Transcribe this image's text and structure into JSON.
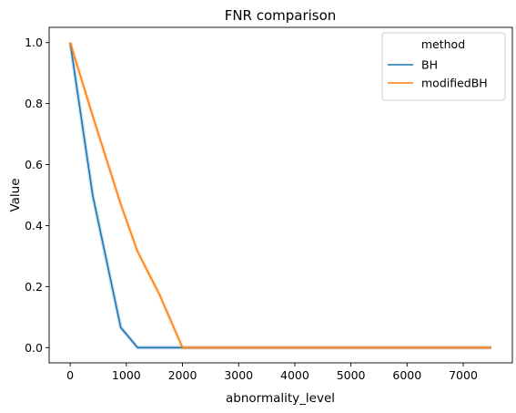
{
  "chart_data": {
    "type": "line",
    "title": "FNR comparison",
    "xlabel": "abnormality_level",
    "ylabel": "Value",
    "xlim": [
      -375,
      7875
    ],
    "ylim": [
      -0.05,
      1.05
    ],
    "x_ticks": [
      0,
      1000,
      2000,
      3000,
      4000,
      5000,
      6000,
      7000
    ],
    "x_tick_labels": [
      "0",
      "1000",
      "2000",
      "3000",
      "4000",
      "5000",
      "6000",
      "7000"
    ],
    "y_ticks": [
      0.0,
      0.2,
      0.4,
      0.6,
      0.8,
      1.0
    ],
    "y_tick_labels": [
      "0.0",
      "0.2",
      "0.4",
      "0.6",
      "0.8",
      "1.0"
    ],
    "grid": false,
    "legend": {
      "title": "method",
      "placement": "upper right"
    },
    "series": [
      {
        "name": "BH",
        "color": "#1f77b4",
        "x": [
          0,
          400,
          900,
          1200,
          1600,
          2000,
          2500,
          3000,
          3500,
          4000,
          4500,
          5000,
          5500,
          6000,
          6500,
          7000,
          7500
        ],
        "values": [
          1.0,
          0.5,
          0.066,
          0.0,
          0.0,
          0.0,
          0.0,
          0.0,
          0.0,
          0.0,
          0.0,
          0.0,
          0.0,
          0.0,
          0.0,
          0.0,
          0.0
        ]
      },
      {
        "name": "modifiedBH",
        "color": "#ff7f0e",
        "x": [
          0,
          400,
          900,
          1200,
          1600,
          2000,
          2500,
          3000,
          3500,
          4000,
          4500,
          5000,
          5500,
          6000,
          6500,
          7000,
          7500
        ],
        "values": [
          1.0,
          0.76,
          0.47,
          0.315,
          0.17,
          0.0,
          0.0,
          0.0,
          0.0,
          0.0,
          0.0,
          0.0,
          0.0,
          0.0,
          0.0,
          0.0,
          0.0
        ]
      }
    ]
  }
}
